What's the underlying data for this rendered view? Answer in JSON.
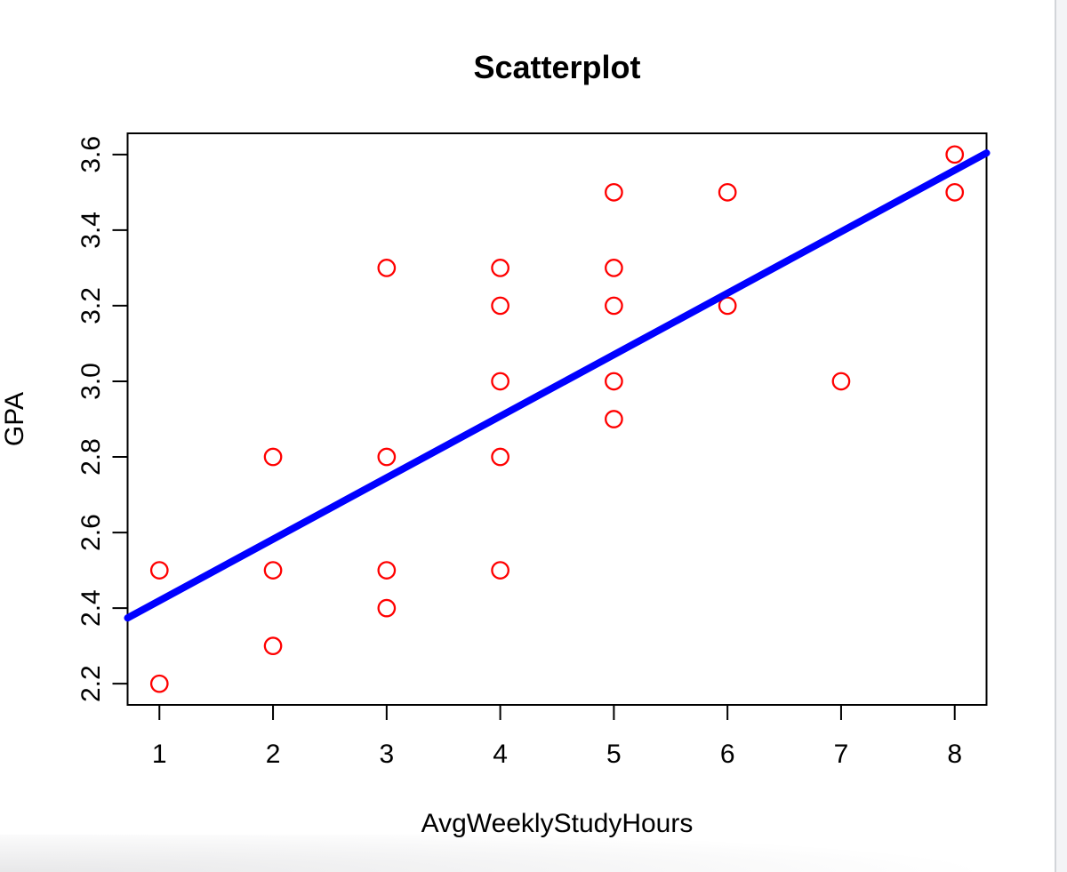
{
  "figure": {
    "background": "#ffffff",
    "page_edge": {
      "divider_color": "#d2d5d9",
      "strip_color": "#f3f4f6"
    }
  },
  "chart_data": {
    "type": "scatter",
    "title": "Scatterplot",
    "xlabel": "AvgWeeklyStudyHours",
    "ylabel": "GPA",
    "x_ticks": [
      "1",
      "2",
      "3",
      "4",
      "5",
      "6",
      "7",
      "8"
    ],
    "y_ticks": [
      "2.2",
      "2.4",
      "2.6",
      "2.8",
      "3.0",
      "3.2",
      "3.4",
      "3.6"
    ],
    "xlim": [
      0.72,
      8.28
    ],
    "ylim": [
      2.144,
      3.656
    ],
    "grid": false,
    "legend": null,
    "frame_color": "#000000",
    "point_color": "#ff0000",
    "point_style": "open-circle",
    "points": [
      [
        1,
        2.2
      ],
      [
        1,
        2.5
      ],
      [
        2,
        2.3
      ],
      [
        2,
        2.5
      ],
      [
        2,
        2.8
      ],
      [
        3,
        2.4
      ],
      [
        3,
        2.5
      ],
      [
        3,
        2.8
      ],
      [
        3,
        3.3
      ],
      [
        4,
        2.5
      ],
      [
        4,
        2.8
      ],
      [
        4,
        3.0
      ],
      [
        4,
        3.2
      ],
      [
        4,
        3.3
      ],
      [
        5,
        2.9
      ],
      [
        5,
        3.0
      ],
      [
        5,
        3.2
      ],
      [
        5,
        3.3
      ],
      [
        5,
        3.5
      ],
      [
        6,
        3.2
      ],
      [
        6,
        3.5
      ],
      [
        7,
        3.0
      ],
      [
        8,
        3.5
      ],
      [
        8,
        3.6
      ]
    ],
    "trend_line": {
      "color": "#0000ff",
      "x": [
        0.72,
        8.28
      ],
      "y": [
        2.374,
        3.604
      ],
      "slope": 0.163,
      "intercept": 2.257
    }
  }
}
